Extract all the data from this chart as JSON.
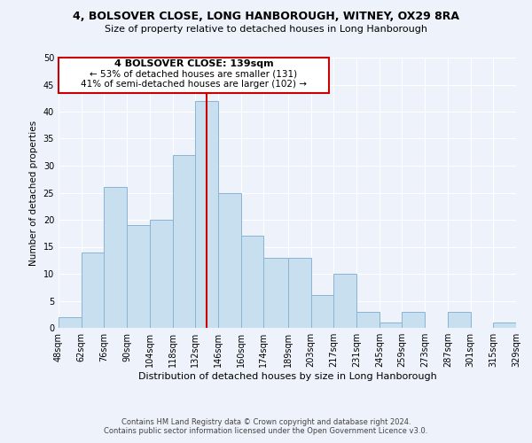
{
  "title": "4, BOLSOVER CLOSE, LONG HANBOROUGH, WITNEY, OX29 8RA",
  "subtitle": "Size of property relative to detached houses in Long Hanborough",
  "xlabel": "Distribution of detached houses by size in Long Hanborough",
  "ylabel": "Number of detached properties",
  "bins": [
    48,
    62,
    76,
    90,
    104,
    118,
    132,
    146,
    160,
    174,
    189,
    203,
    217,
    231,
    245,
    259,
    273,
    287,
    301,
    315,
    329
  ],
  "bin_labels": [
    "48sqm",
    "62sqm",
    "76sqm",
    "90sqm",
    "104sqm",
    "118sqm",
    "132sqm",
    "146sqm",
    "160sqm",
    "174sqm",
    "189sqm",
    "203sqm",
    "217sqm",
    "231sqm",
    "245sqm",
    "259sqm",
    "273sqm",
    "287sqm",
    "301sqm",
    "315sqm",
    "329sqm"
  ],
  "counts": [
    2,
    14,
    26,
    19,
    20,
    32,
    42,
    25,
    17,
    13,
    13,
    6,
    10,
    3,
    1,
    3,
    0,
    3,
    0,
    1
  ],
  "bar_color": "#c8dff0",
  "bar_edge_color": "#8ab4d4",
  "vline_x": 139,
  "vline_color": "#cc0000",
  "annotation_title": "4 BOLSOVER CLOSE: 139sqm",
  "annotation_line1": "← 53% of detached houses are smaller (131)",
  "annotation_line2": "41% of semi-detached houses are larger (102) →",
  "annotation_box_edge": "#cc0000",
  "ylim": [
    0,
    50
  ],
  "yticks": [
    0,
    5,
    10,
    15,
    20,
    25,
    30,
    35,
    40,
    45,
    50
  ],
  "footer1": "Contains HM Land Registry data © Crown copyright and database right 2024.",
  "footer2": "Contains public sector information licensed under the Open Government Licence v3.0.",
  "bg_color": "#eef2fb"
}
